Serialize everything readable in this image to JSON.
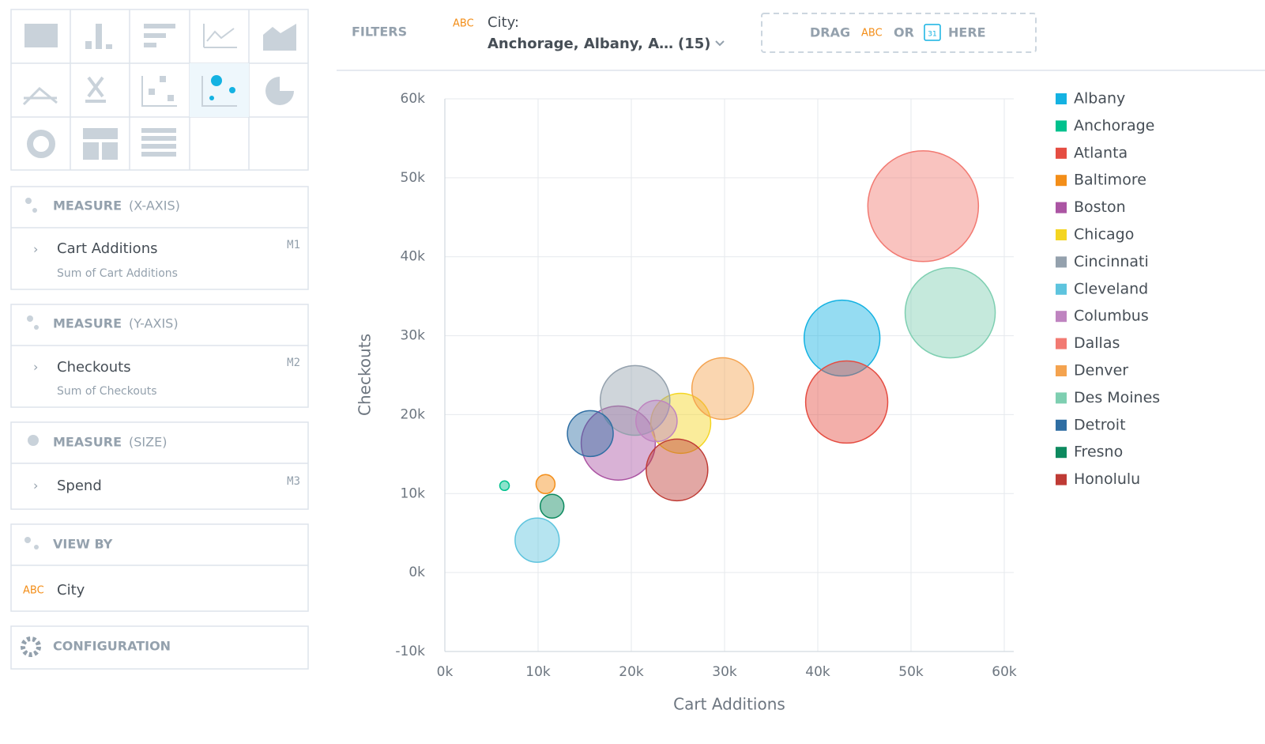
{
  "sidebar": {
    "measure_x": {
      "label": "MEASURE",
      "axis": "(X-AXIS)",
      "item": "Cart Additions",
      "id": "M1",
      "sub": "Sum of Cart Additions"
    },
    "measure_y": {
      "label": "MEASURE",
      "axis": "(Y-AXIS)",
      "item": "Checkouts",
      "id": "M2",
      "sub": "Sum of Checkouts"
    },
    "measure_size": {
      "label": "MEASURE",
      "axis": "(SIZE)",
      "item": "Spend",
      "id": "M3"
    },
    "view_by": {
      "label": "VIEW BY",
      "type": "ABC",
      "item": "City"
    },
    "configuration": "CONFIGURATION"
  },
  "filters": {
    "label": "FILTERS",
    "type": "ABC",
    "name": "City:",
    "value": "Anchorage, Albany, A…",
    "count": "(15)",
    "drop_zone": {
      "drag": "DRAG",
      "type": "ABC",
      "or": "OR",
      "date_icon": "31",
      "here": "HERE"
    }
  },
  "chart_data": {
    "type": "bubble",
    "x_label": "Cart Additions",
    "y_label": "Checkouts",
    "xlim": [
      0,
      60000
    ],
    "ylim": [
      -10000,
      60000
    ],
    "xticks": [
      {
        "value": 0,
        "label": "0k"
      },
      {
        "value": 10000,
        "label": "10k"
      },
      {
        "value": 20000,
        "label": "20k"
      },
      {
        "value": 30000,
        "label": "30k"
      },
      {
        "value": 40000,
        "label": "40k"
      },
      {
        "value": 50000,
        "label": "50k"
      },
      {
        "value": 60000,
        "label": "60k"
      }
    ],
    "yticks": [
      {
        "value": -10000,
        "label": "-10k"
      },
      {
        "value": 0,
        "label": "0k"
      },
      {
        "value": 10000,
        "label": "10k"
      },
      {
        "value": 20000,
        "label": "20k"
      },
      {
        "value": 30000,
        "label": "30k"
      },
      {
        "value": 40000,
        "label": "40k"
      },
      {
        "value": 50000,
        "label": "50k"
      },
      {
        "value": 60000,
        "label": "60k"
      }
    ],
    "grid": true,
    "legend": "right",
    "series": [
      {
        "name": "Albany",
        "color": "#14b2e2",
        "x": [
          42600
        ],
        "values": [
          29700
        ],
        "sizes": [
          23000
        ]
      },
      {
        "name": "Anchorage",
        "color": "#00c18d",
        "x": [
          6400
        ],
        "values": [
          11000
        ],
        "sizes": [
          360
        ]
      },
      {
        "name": "Atlanta",
        "color": "#e54d42",
        "x": [
          43100
        ],
        "values": [
          21600
        ],
        "sizes": [
          27000
        ]
      },
      {
        "name": "Baltimore",
        "color": "#f38e19",
        "x": [
          10800
        ],
        "values": [
          11200
        ],
        "sizes": [
          1440
        ]
      },
      {
        "name": "Boston",
        "color": "#ab55a3",
        "x": [
          18600
        ],
        "values": [
          16400
        ],
        "sizes": [
          22000
        ]
      },
      {
        "name": "Chicago",
        "color": "#f4d521",
        "x": [
          25300
        ],
        "values": [
          18900
        ],
        "sizes": [
          14400
        ]
      },
      {
        "name": "Cincinnati",
        "color": "#94a1ad",
        "x": [
          20400
        ],
        "values": [
          21800
        ],
        "sizes": [
          19400
        ]
      },
      {
        "name": "Cleveland",
        "color": "#5ec4de",
        "x": [
          9900
        ],
        "values": [
          4100
        ],
        "sizes": [
          7800
        ]
      },
      {
        "name": "Columbus",
        "color": "#bf84c0",
        "x": [
          22700
        ],
        "values": [
          19200
        ],
        "sizes": [
          6800
        ]
      },
      {
        "name": "Dallas",
        "color": "#f27a72",
        "x": [
          51300
        ],
        "values": [
          46400
        ],
        "sizes": [
          49000
        ]
      },
      {
        "name": "Denver",
        "color": "#f4a34f",
        "x": [
          29800
        ],
        "values": [
          23300
        ],
        "sizes": [
          15200
        ]
      },
      {
        "name": "Des Moines",
        "color": "#7ecfb1",
        "x": [
          54200
        ],
        "values": [
          32900
        ],
        "sizes": [
          32500
        ]
      },
      {
        "name": "Detroit",
        "color": "#2f6ea3",
        "x": [
          15600
        ],
        "values": [
          17600
        ],
        "sizes": [
          8400
        ]
      },
      {
        "name": "Fresno",
        "color": "#0d8a5f",
        "x": [
          11500
        ],
        "values": [
          8400
        ],
        "sizes": [
          2250
        ]
      },
      {
        "name": "Honolulu",
        "color": "#bf3b35",
        "x": [
          24900
        ],
        "values": [
          13000
        ],
        "sizes": [
          15200
        ]
      }
    ]
  }
}
